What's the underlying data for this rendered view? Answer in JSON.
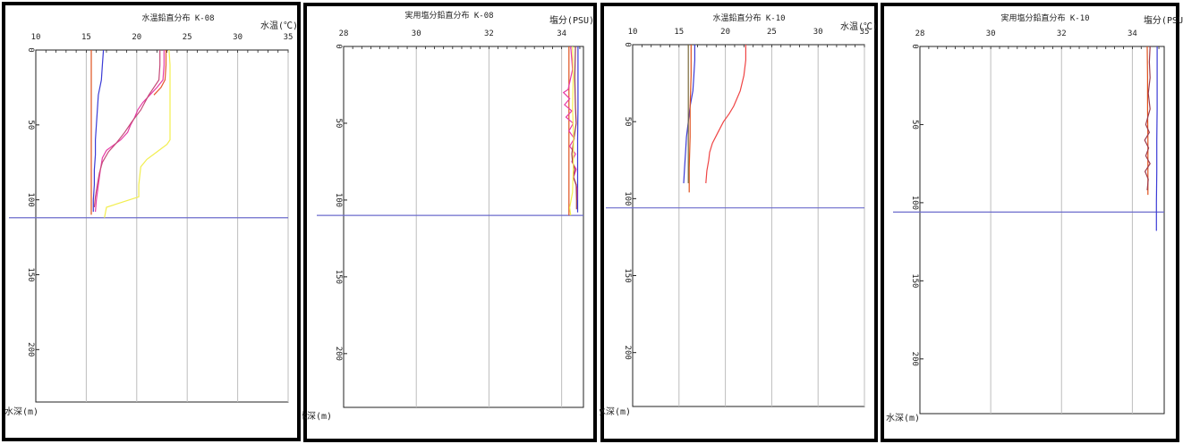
{
  "chart_data": [
    {
      "type": "line",
      "title": "水温鉛直分布 K-08",
      "xlabel": "水温(℃)",
      "ylabel": "水深(m)",
      "xlim": [
        10,
        35
      ],
      "ylim": [
        0,
        235
      ],
      "xticks": [
        "10",
        "15",
        "20",
        "25",
        "30",
        "35"
      ],
      "xtick_values": [
        10,
        15,
        20,
        25,
        30,
        35
      ],
      "yticks": [
        "0",
        "50",
        "100",
        "150",
        "200"
      ],
      "ytick_values": [
        0,
        50,
        100,
        150,
        200
      ],
      "grid": true,
      "bottom_line_depth": 112,
      "series": [
        {
          "color": "#3b3bd6",
          "points": [
            [
              16.7,
              0
            ],
            [
              16.6,
              10
            ],
            [
              16.5,
              20
            ],
            [
              16.2,
              30
            ],
            [
              16.1,
              40
            ],
            [
              16.0,
              50
            ],
            [
              15.9,
              60
            ],
            [
              15.9,
              70
            ],
            [
              15.8,
              80
            ],
            [
              15.8,
              90
            ],
            [
              15.7,
              100
            ],
            [
              15.7,
              108
            ]
          ]
        },
        {
          "color": "#e0521e",
          "points": [
            [
              15.5,
              0
            ],
            [
              15.5,
              20
            ],
            [
              15.5,
              40
            ],
            [
              15.5,
              60
            ],
            [
              15.5,
              80
            ],
            [
              15.5,
              100
            ],
            [
              15.5,
              110
            ]
          ]
        },
        {
          "color": "#e63aa6",
          "points": [
            [
              22.7,
              0
            ],
            [
              22.7,
              10
            ],
            [
              22.6,
              20
            ],
            [
              22.0,
              25
            ],
            [
              21.3,
              30
            ],
            [
              20.6,
              35
            ],
            [
              20.1,
              40
            ],
            [
              19.8,
              45
            ],
            [
              19.4,
              50
            ],
            [
              19.1,
              55
            ],
            [
              18.4,
              60
            ],
            [
              17.6,
              64
            ],
            [
              17.0,
              67
            ],
            [
              16.6,
              72
            ],
            [
              16.4,
              80
            ],
            [
              16.2,
              90
            ],
            [
              16.0,
              100
            ],
            [
              15.9,
              108
            ]
          ]
        },
        {
          "color": "#c54a78",
          "points": [
            [
              22.3,
              0
            ],
            [
              22.3,
              10
            ],
            [
              22.2,
              20
            ],
            [
              21.2,
              30
            ],
            [
              20.4,
              40
            ],
            [
              19.5,
              48
            ],
            [
              18.8,
              55
            ],
            [
              18.0,
              62
            ],
            [
              17.2,
              68
            ],
            [
              16.6,
              75
            ],
            [
              16.3,
              82
            ],
            [
              16.1,
              90
            ],
            [
              15.9,
              98
            ],
            [
              15.8,
              105
            ]
          ]
        },
        {
          "color": "#f2ee4e",
          "points": [
            [
              23.2,
              0
            ],
            [
              23.3,
              10
            ],
            [
              23.3,
              20
            ],
            [
              23.3,
              30
            ],
            [
              23.3,
              40
            ],
            [
              23.3,
              50
            ],
            [
              23.3,
              60
            ],
            [
              23.0,
              63
            ],
            [
              22.0,
              68
            ],
            [
              21.0,
              73
            ],
            [
              20.4,
              78
            ],
            [
              20.2,
              90
            ],
            [
              20.2,
              98
            ],
            [
              17.0,
              105
            ],
            [
              16.8,
              112
            ]
          ]
        },
        {
          "color": "#e6542a",
          "points": [
            [
              22.9,
              0
            ],
            [
              22.9,
              10
            ],
            [
              22.8,
              20
            ],
            [
              22.4,
              25
            ],
            [
              21.7,
              30
            ]
          ]
        }
      ]
    },
    {
      "type": "line",
      "title": "実用塩分鉛直分布 K-08",
      "xlabel": "塩分(PSU)",
      "ylabel": "水深(m)",
      "xlim": [
        28,
        34.6
      ],
      "ylim": [
        0,
        235
      ],
      "xticks": [
        "28",
        "30",
        "32",
        "34"
      ],
      "xtick_values": [
        28,
        30,
        32,
        34
      ],
      "yticks": [
        "0",
        "50",
        "100",
        "150",
        "200"
      ],
      "ytick_values": [
        0,
        50,
        100,
        150,
        200
      ],
      "grid": true,
      "bottom_line_depth": 110,
      "series": [
        {
          "color": "#3b3bd6",
          "points": [
            [
              34.45,
              0
            ],
            [
              34.45,
              20
            ],
            [
              34.45,
              40
            ],
            [
              34.44,
              60
            ],
            [
              34.44,
              80
            ],
            [
              34.44,
              100
            ],
            [
              34.44,
              108
            ]
          ]
        },
        {
          "color": "#e0521e",
          "points": [
            [
              34.2,
              0
            ],
            [
              34.2,
              20
            ],
            [
              34.2,
              40
            ],
            [
              34.2,
              60
            ],
            [
              34.2,
              80
            ],
            [
              34.2,
              100
            ],
            [
              34.2,
              110
            ]
          ]
        },
        {
          "color": "#e63aa6",
          "points": [
            [
              34.25,
              0
            ],
            [
              34.3,
              15
            ],
            [
              34.18,
              28
            ],
            [
              34.05,
              30
            ],
            [
              34.22,
              34
            ],
            [
              34.08,
              38
            ],
            [
              34.28,
              42
            ],
            [
              34.12,
              46
            ],
            [
              34.32,
              50
            ],
            [
              34.2,
              55
            ],
            [
              34.35,
              60
            ],
            [
              34.22,
              65
            ],
            [
              34.38,
              70
            ],
            [
              34.28,
              75
            ],
            [
              34.4,
              80
            ],
            [
              34.33,
              85
            ],
            [
              34.42,
              92
            ],
            [
              34.42,
              100
            ]
          ]
        },
        {
          "color": "#9c3a4c",
          "points": [
            [
              34.38,
              0
            ],
            [
              34.36,
              20
            ],
            [
              34.38,
              40
            ],
            [
              34.4,
              50
            ],
            [
              34.34,
              60
            ],
            [
              34.28,
              70
            ],
            [
              34.3,
              75
            ],
            [
              34.36,
              80
            ],
            [
              34.32,
              85
            ],
            [
              34.4,
              90
            ],
            [
              34.41,
              100
            ],
            [
              34.41,
              106
            ]
          ]
        },
        {
          "color": "#f2ee4e",
          "points": [
            [
              34.3,
              0
            ],
            [
              34.32,
              20
            ],
            [
              34.3,
              40
            ],
            [
              34.33,
              60
            ],
            [
              34.32,
              80
            ],
            [
              34.3,
              95
            ],
            [
              34.22,
              105
            ],
            [
              34.25,
              110
            ]
          ]
        }
      ]
    },
    {
      "type": "line",
      "title": "水温鉛直分布 K-10",
      "xlabel": "水温(℃)",
      "ylabel": "水深(m)",
      "xlim": [
        10,
        35
      ],
      "ylim": [
        0,
        235
      ],
      "xticks": [
        "10",
        "15",
        "20",
        "25",
        "30",
        "35"
      ],
      "xtick_values": [
        10,
        15,
        20,
        25,
        30,
        35
      ],
      "yticks": [
        "0",
        "50",
        "100",
        "150",
        "200"
      ],
      "ytick_values": [
        0,
        50,
        100,
        150,
        200
      ],
      "grid": true,
      "bottom_line_depth": 106,
      "series": [
        {
          "color": "#3b3bd6",
          "points": [
            [
              16.7,
              0
            ],
            [
              16.7,
              10
            ],
            [
              16.6,
              20
            ],
            [
              16.5,
              30
            ],
            [
              16.2,
              40
            ],
            [
              16.0,
              50
            ],
            [
              15.8,
              60
            ],
            [
              15.7,
              70
            ],
            [
              15.6,
              80
            ],
            [
              15.5,
              90
            ]
          ]
        },
        {
          "color": "#e0521e",
          "points": [
            [
              16.3,
              0
            ],
            [
              16.3,
              20
            ],
            [
              16.2,
              40
            ],
            [
              16.2,
              60
            ],
            [
              16.1,
              80
            ],
            [
              16.1,
              96
            ]
          ]
        },
        {
          "color": "#ef4444",
          "points": [
            [
              22.2,
              0
            ],
            [
              22.2,
              10
            ],
            [
              22.0,
              20
            ],
            [
              21.6,
              30
            ],
            [
              20.9,
              40
            ],
            [
              20.4,
              45
            ],
            [
              19.8,
              50
            ],
            [
              19.2,
              57
            ],
            [
              18.6,
              64
            ],
            [
              18.3,
              70
            ],
            [
              18.2,
              75
            ],
            [
              18.0,
              82
            ],
            [
              17.9,
              90
            ]
          ]
        },
        {
          "color": "#7a6a3a",
          "points": [
            [
              16.0,
              0
            ],
            [
              16.0,
              40
            ],
            [
              16.0,
              80
            ],
            [
              16.0,
              90
            ]
          ]
        }
      ]
    },
    {
      "type": "line",
      "title": "実用塩分鉛直分布 K-10",
      "xlabel": "塩分(PSU)",
      "ylabel": "水深(m)",
      "xlim": [
        28,
        34.9
      ],
      "ylim": [
        0,
        235
      ],
      "xticks": [
        "28",
        "30",
        "32",
        "34"
      ],
      "xtick_values": [
        28,
        30,
        32,
        34
      ],
      "yticks": [
        "0",
        "50",
        "100",
        "150",
        "200"
      ],
      "ytick_values": [
        0,
        50,
        100,
        150,
        200
      ],
      "grid": true,
      "bottom_line_depth": 106,
      "series": [
        {
          "color": "#3b3bd6",
          "points": [
            [
              34.7,
              0
            ],
            [
              34.7,
              20
            ],
            [
              34.7,
              40
            ],
            [
              34.69,
              60
            ],
            [
              34.69,
              80
            ],
            [
              34.68,
              100
            ],
            [
              34.68,
              118
            ]
          ]
        },
        {
          "color": "#e0521e",
          "points": [
            [
              34.42,
              0
            ],
            [
              34.43,
              20
            ],
            [
              34.43,
              40
            ],
            [
              34.44,
              60
            ],
            [
              34.44,
              80
            ],
            [
              34.44,
              95
            ]
          ]
        },
        {
          "color": "#9c3a4c",
          "points": [
            [
              34.5,
              0
            ],
            [
              34.48,
              10
            ],
            [
              34.5,
              20
            ],
            [
              34.45,
              30
            ],
            [
              34.5,
              40
            ],
            [
              34.38,
              50
            ],
            [
              34.48,
              55
            ],
            [
              34.35,
              60
            ],
            [
              34.46,
              65
            ],
            [
              34.38,
              70
            ],
            [
              34.5,
              75
            ],
            [
              34.36,
              80
            ],
            [
              34.45,
              85
            ],
            [
              34.42,
              92
            ]
          ]
        }
      ]
    }
  ]
}
